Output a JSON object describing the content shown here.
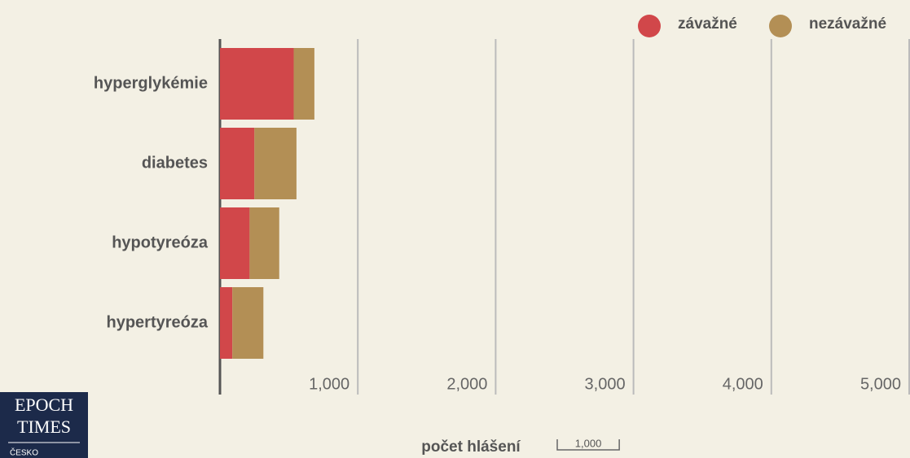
{
  "chart_data": {
    "type": "bar",
    "orientation": "horizontal",
    "stacked": true,
    "categories": [
      "hyperglykémie",
      "diabetes",
      "hypotyreóza",
      "hypertyreóza"
    ],
    "series": [
      {
        "name": "závažné",
        "color": "#d1474a",
        "values": [
          535,
          250,
          215,
          90
        ]
      },
      {
        "name": "nezávažné",
        "color": "#b38f55",
        "values": [
          150,
          305,
          215,
          225
        ]
      }
    ],
    "xlim": [
      0,
      5000
    ],
    "xticks": [
      {
        "value": 1000,
        "label": "1,000"
      },
      {
        "value": 2000,
        "label": "2,000"
      },
      {
        "value": 3000,
        "label": "3,000"
      },
      {
        "value": 4000,
        "label": "4,000"
      },
      {
        "value": 5000,
        "label": "5,000"
      }
    ],
    "grid": true,
    "legend": "top-right",
    "xlabel": "počet hlášení",
    "scale_bar": {
      "value": 1000,
      "label": "1,000"
    }
  },
  "logo": {
    "line1": "EPOCH",
    "line2": "TIMES",
    "line3": "ČESKO"
  }
}
